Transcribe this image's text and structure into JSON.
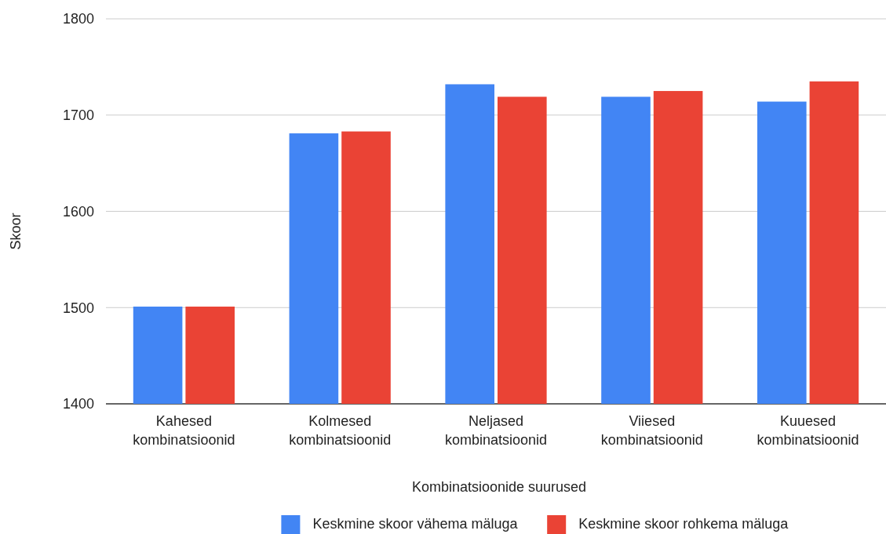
{
  "chart_data": {
    "type": "bar",
    "xlabel": "Kombinatsioonide suurused",
    "ylabel": "Skoor",
    "categories": [
      "Kahesed kombinatsioonid",
      "Kolmesed kombinatsioonid",
      "Neljased kombinatsioonid",
      "Viiesed kombinatsioonid",
      "Kuuesed kombinatsioonid"
    ],
    "series": [
      {
        "name": "Keskmine skoor vähema mäluga",
        "color": "#4285f4",
        "values": [
          1501,
          1681,
          1732,
          1719,
          1714
        ]
      },
      {
        "name": "Keskmine skoor rohkema mäluga",
        "color": "#ea4335",
        "values": [
          1501,
          1683,
          1719,
          1725,
          1735
        ]
      }
    ],
    "ylim": [
      1400,
      1800
    ],
    "yticks": [
      1400,
      1500,
      1600,
      1700,
      1800
    ],
    "grid": "y",
    "legend": "bottom"
  }
}
